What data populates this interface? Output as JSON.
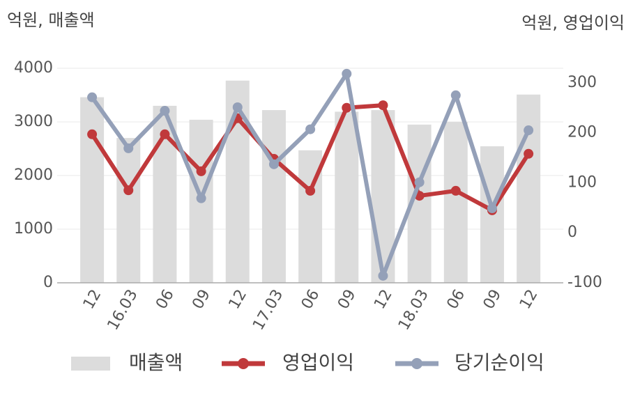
{
  "chart_data": {
    "type": "bar-line",
    "y_label": "억원, 매출액",
    "y2_label": "억원, 영업이익",
    "categories": [
      "12",
      "16.03",
      "06",
      "09",
      "12",
      "17.03",
      "06",
      "09",
      "12",
      "18.03",
      "06",
      "09",
      "12"
    ],
    "series": [
      {
        "name": "매출액",
        "type": "bar",
        "color": "#dcdcdc",
        "values": [
          3460,
          2700,
          3300,
          3040,
          3770,
          3220,
          2470,
          3190,
          3220,
          2950,
          3000,
          2545,
          3510
        ]
      },
      {
        "name": "영업이익",
        "type": "line",
        "axis": "y2",
        "color": "#c0393b",
        "values": [
          197,
          85,
          197,
          123,
          229,
          148,
          84,
          250,
          255,
          74,
          84,
          45,
          158
        ]
      },
      {
        "name": "당기순이익",
        "type": "line",
        "axis": "y2",
        "color": "#94a0b8",
        "values": [
          271,
          169,
          244,
          69,
          251,
          137,
          207,
          318,
          -86,
          101,
          275,
          49,
          205
        ]
      }
    ],
    "ylim": [
      0,
      4000
    ],
    "yticks": [
      0,
      1000,
      2000,
      3000,
      4000
    ],
    "y2lim": [
      -100,
      329
    ],
    "y2ticks": [
      -100,
      0,
      100,
      200,
      300
    ],
    "grid": true,
    "legend": "bottom"
  }
}
